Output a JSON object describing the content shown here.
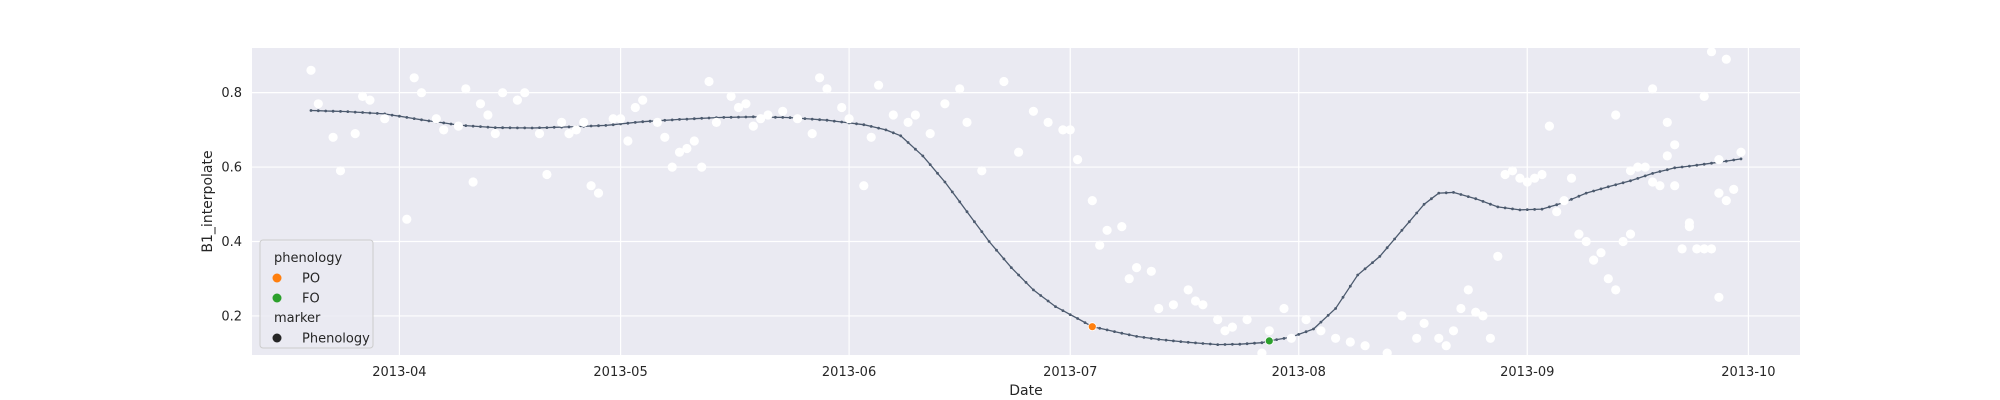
{
  "chart_data": {
    "type": "scatter",
    "title": "",
    "xlabel": "Date",
    "ylabel": "B1_interpolate",
    "x_range": [
      "2013-03-12",
      "2013-10-08"
    ],
    "ylim": [
      0.095,
      0.92
    ],
    "yticks": [
      0.2,
      0.4,
      0.6,
      0.8
    ],
    "xticks": [
      "2013-04",
      "2013-05",
      "2013-06",
      "2013-07",
      "2013-08",
      "2013-09",
      "2013-10"
    ],
    "grid": true,
    "background": "#eaeaf2",
    "legend_placement": "lower-left",
    "legend": {
      "groups": [
        {
          "title": "phenology",
          "entries": [
            {
              "label": "PO",
              "color": "#ff7f0e"
            },
            {
              "label": "FO",
              "color": "#2ca02c"
            }
          ]
        },
        {
          "title": "marker",
          "entries": [
            {
              "label": "Phenology",
              "color": "#262626"
            }
          ]
        }
      ]
    },
    "series": [
      {
        "type": "line-with-points",
        "color": "#4c5a6e",
        "points": [
          [
            "2013-03-20",
            0.752
          ],
          [
            "2013-03-25",
            0.749
          ],
          [
            "2013-03-30",
            0.743
          ],
          [
            "2013-04-04",
            0.727
          ],
          [
            "2013-04-09",
            0.713
          ],
          [
            "2013-04-14",
            0.706
          ],
          [
            "2013-04-19",
            0.705
          ],
          [
            "2013-04-24",
            0.708
          ],
          [
            "2013-04-29",
            0.712
          ],
          [
            "2013-05-04",
            0.722
          ],
          [
            "2013-05-09",
            0.728
          ],
          [
            "2013-05-14",
            0.733
          ],
          [
            "2013-05-19",
            0.735
          ],
          [
            "2013-05-24",
            0.733
          ],
          [
            "2013-05-29",
            0.726
          ],
          [
            "2013-06-03",
            0.714
          ],
          [
            "2013-06-06",
            0.7
          ],
          [
            "2013-06-08",
            0.684
          ],
          [
            "2013-06-11",
            0.63
          ],
          [
            "2013-06-14",
            0.56
          ],
          [
            "2013-06-17",
            0.48
          ],
          [
            "2013-06-20",
            0.4
          ],
          [
            "2013-06-23",
            0.33
          ],
          [
            "2013-06-26",
            0.27
          ],
          [
            "2013-06-29",
            0.225
          ],
          [
            "2013-07-02",
            0.193
          ],
          [
            "2013-07-04",
            0.171
          ],
          [
            "2013-07-07",
            0.158
          ],
          [
            "2013-07-10",
            0.145
          ],
          [
            "2013-07-13",
            0.137
          ],
          [
            "2013-07-17",
            0.129
          ],
          [
            "2013-07-21",
            0.123
          ],
          [
            "2013-07-24",
            0.124
          ],
          [
            "2013-07-27",
            0.128
          ],
          [
            "2013-07-28",
            0.133
          ],
          [
            "2013-07-31",
            0.143
          ],
          [
            "2013-08-03",
            0.165
          ],
          [
            "2013-08-06",
            0.22
          ],
          [
            "2013-08-09",
            0.31
          ],
          [
            "2013-08-12",
            0.36
          ],
          [
            "2013-08-15",
            0.43
          ],
          [
            "2013-08-18",
            0.5
          ],
          [
            "2013-08-20",
            0.53
          ],
          [
            "2013-08-22",
            0.532
          ],
          [
            "2013-08-25",
            0.515
          ],
          [
            "2013-08-28",
            0.493
          ],
          [
            "2013-08-31",
            0.485
          ],
          [
            "2013-09-03",
            0.487
          ],
          [
            "2013-09-06",
            0.505
          ],
          [
            "2013-09-09",
            0.53
          ],
          [
            "2013-09-12",
            0.547
          ],
          [
            "2013-09-15",
            0.563
          ],
          [
            "2013-09-18",
            0.583
          ],
          [
            "2013-09-21",
            0.598
          ],
          [
            "2013-09-24",
            0.605
          ],
          [
            "2013-09-27",
            0.613
          ],
          [
            "2013-09-30",
            0.622
          ]
        ]
      },
      {
        "type": "scatter",
        "color": "#ffffff",
        "points": [
          [
            "2013-03-20",
            0.86
          ],
          [
            "2013-03-21",
            0.77
          ],
          [
            "2013-03-23",
            0.68
          ],
          [
            "2013-03-24",
            0.59
          ],
          [
            "2013-03-26",
            0.69
          ],
          [
            "2013-03-27",
            0.79
          ],
          [
            "2013-03-28",
            0.78
          ],
          [
            "2013-03-30",
            0.73
          ],
          [
            "2013-04-02",
            0.46
          ],
          [
            "2013-04-03",
            0.84
          ],
          [
            "2013-04-04",
            0.8
          ],
          [
            "2013-04-06",
            0.73
          ],
          [
            "2013-04-07",
            0.7
          ],
          [
            "2013-04-09",
            0.71
          ],
          [
            "2013-04-10",
            0.81
          ],
          [
            "2013-04-11",
            0.56
          ],
          [
            "2013-04-12",
            0.77
          ],
          [
            "2013-04-13",
            0.74
          ],
          [
            "2013-04-14",
            0.69
          ],
          [
            "2013-04-15",
            0.8
          ],
          [
            "2013-04-17",
            0.78
          ],
          [
            "2013-04-18",
            0.8
          ],
          [
            "2013-04-20",
            0.69
          ],
          [
            "2013-04-21",
            0.58
          ],
          [
            "2013-04-23",
            0.72
          ],
          [
            "2013-04-24",
            0.69
          ],
          [
            "2013-04-25",
            0.7
          ],
          [
            "2013-04-26",
            0.72
          ],
          [
            "2013-04-27",
            0.55
          ],
          [
            "2013-04-28",
            0.53
          ],
          [
            "2013-04-30",
            0.73
          ],
          [
            "2013-05-01",
            0.73
          ],
          [
            "2013-05-02",
            0.67
          ],
          [
            "2013-05-03",
            0.76
          ],
          [
            "2013-05-04",
            0.78
          ],
          [
            "2013-05-06",
            0.72
          ],
          [
            "2013-05-07",
            0.68
          ],
          [
            "2013-05-08",
            0.6
          ],
          [
            "2013-05-09",
            0.64
          ],
          [
            "2013-05-10",
            0.65
          ],
          [
            "2013-05-11",
            0.67
          ],
          [
            "2013-05-12",
            0.6
          ],
          [
            "2013-05-13",
            0.83
          ],
          [
            "2013-05-14",
            0.72
          ],
          [
            "2013-05-16",
            0.79
          ],
          [
            "2013-05-17",
            0.76
          ],
          [
            "2013-05-18",
            0.77
          ],
          [
            "2013-05-19",
            0.71
          ],
          [
            "2013-05-20",
            0.73
          ],
          [
            "2013-05-21",
            0.74
          ],
          [
            "2013-05-23",
            0.75
          ],
          [
            "2013-05-25",
            0.73
          ],
          [
            "2013-05-27",
            0.69
          ],
          [
            "2013-05-28",
            0.84
          ],
          [
            "2013-05-29",
            0.81
          ],
          [
            "2013-05-31",
            0.76
          ],
          [
            "2013-06-01",
            0.73
          ],
          [
            "2013-06-03",
            0.55
          ],
          [
            "2013-06-04",
            0.68
          ],
          [
            "2013-06-05",
            0.82
          ],
          [
            "2013-06-07",
            0.74
          ],
          [
            "2013-06-09",
            0.72
          ],
          [
            "2013-06-10",
            0.74
          ],
          [
            "2013-06-12",
            0.69
          ],
          [
            "2013-06-14",
            0.77
          ],
          [
            "2013-06-16",
            0.81
          ],
          [
            "2013-06-17",
            0.72
          ],
          [
            "2013-06-19",
            0.59
          ],
          [
            "2013-06-22",
            0.83
          ],
          [
            "2013-06-24",
            0.64
          ],
          [
            "2013-06-26",
            0.75
          ],
          [
            "2013-06-28",
            0.72
          ],
          [
            "2013-06-30",
            0.7
          ],
          [
            "2013-07-01",
            0.7
          ],
          [
            "2013-07-02",
            0.62
          ],
          [
            "2013-07-04",
            0.51
          ],
          [
            "2013-07-05",
            0.39
          ],
          [
            "2013-07-06",
            0.43
          ],
          [
            "2013-07-08",
            0.44
          ],
          [
            "2013-07-09",
            0.3
          ],
          [
            "2013-07-10",
            0.33
          ],
          [
            "2013-07-12",
            0.32
          ],
          [
            "2013-07-13",
            0.22
          ],
          [
            "2013-07-15",
            0.23
          ],
          [
            "2013-07-17",
            0.27
          ],
          [
            "2013-07-18",
            0.24
          ],
          [
            "2013-07-19",
            0.23
          ],
          [
            "2013-07-21",
            0.19
          ],
          [
            "2013-07-22",
            0.16
          ],
          [
            "2013-07-23",
            0.17
          ],
          [
            "2013-07-25",
            0.19
          ],
          [
            "2013-07-27",
            0.1
          ],
          [
            "2013-07-28",
            0.16
          ],
          [
            "2013-07-30",
            0.22
          ],
          [
            "2013-07-31",
            0.14
          ],
          [
            "2013-08-02",
            0.19
          ],
          [
            "2013-08-04",
            0.16
          ],
          [
            "2013-08-06",
            0.14
          ],
          [
            "2013-08-08",
            0.13
          ],
          [
            "2013-08-10",
            0.12
          ],
          [
            "2013-08-12",
            0.08
          ],
          [
            "2013-08-13",
            0.1
          ],
          [
            "2013-08-15",
            0.2
          ],
          [
            "2013-08-17",
            0.14
          ],
          [
            "2013-08-18",
            0.18
          ],
          [
            "2013-08-20",
            0.14
          ],
          [
            "2013-08-21",
            0.12
          ],
          [
            "2013-08-22",
            0.16
          ],
          [
            "2013-08-23",
            0.22
          ],
          [
            "2013-08-24",
            0.27
          ],
          [
            "2013-08-25",
            0.21
          ],
          [
            "2013-08-26",
            0.2
          ],
          [
            "2013-08-27",
            0.14
          ],
          [
            "2013-08-28",
            0.36
          ],
          [
            "2013-08-29",
            0.58
          ],
          [
            "2013-08-30",
            0.59
          ],
          [
            "2013-08-31",
            0.57
          ],
          [
            "2013-09-01",
            0.56
          ],
          [
            "2013-09-02",
            0.57
          ],
          [
            "2013-09-03",
            0.58
          ],
          [
            "2013-09-04",
            0.71
          ],
          [
            "2013-09-05",
            0.48
          ],
          [
            "2013-09-06",
            0.51
          ],
          [
            "2013-09-07",
            0.57
          ],
          [
            "2013-09-08",
            0.42
          ],
          [
            "2013-09-09",
            0.4
          ],
          [
            "2013-09-10",
            0.35
          ],
          [
            "2013-09-11",
            0.37
          ],
          [
            "2013-09-12",
            0.3
          ],
          [
            "2013-09-13",
            0.27
          ],
          [
            "2013-09-14",
            0.4
          ],
          [
            "2013-09-15",
            0.42
          ],
          [
            "2013-09-16",
            0.6
          ],
          [
            "2013-09-17",
            0.6
          ],
          [
            "2013-09-18",
            0.56
          ],
          [
            "2013-09-19",
            0.55
          ],
          [
            "2013-09-20",
            0.63
          ],
          [
            "2013-09-21",
            0.55
          ],
          [
            "2013-09-22",
            0.38
          ],
          [
            "2013-09-23",
            0.44
          ],
          [
            "2013-09-24",
            0.38
          ],
          [
            "2013-09-25",
            0.38
          ],
          [
            "2013-09-26",
            0.38
          ],
          [
            "2013-09-27",
            0.25
          ],
          [
            "2013-09-28",
            0.51
          ],
          [
            "2013-09-29",
            0.54
          ],
          [
            "2013-09-30",
            0.64
          ],
          [
            "2013-09-13",
            0.74
          ],
          [
            "2013-09-15",
            0.59
          ],
          [
            "2013-09-18",
            0.81
          ],
          [
            "2013-09-20",
            0.72
          ],
          [
            "2013-09-21",
            0.66
          ],
          [
            "2013-09-23",
            0.45
          ],
          [
            "2013-09-25",
            0.79
          ],
          [
            "2013-09-27",
            0.62
          ],
          [
            "2013-09-26",
            0.91
          ],
          [
            "2013-09-27",
            0.53
          ],
          [
            "2013-09-28",
            0.89
          ]
        ]
      },
      {
        "type": "phenology-points",
        "points": [
          {
            "label": "PO",
            "date": "2013-07-04",
            "value": 0.171,
            "color": "#ff7f0e"
          },
          {
            "label": "FO",
            "date": "2013-07-28",
            "value": 0.133,
            "color": "#2ca02c"
          }
        ]
      }
    ]
  }
}
